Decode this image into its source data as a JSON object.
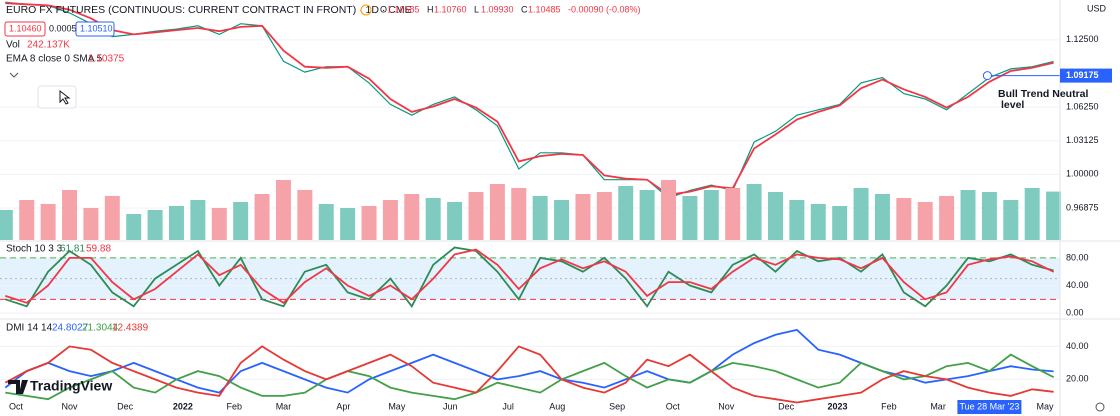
{
  "header": {
    "title": "EURO FX FUTURES (CONTINUOUS: CURRENT CONTRACT IN FRONT) · 1D · CME",
    "quote": [
      {
        "label": "O",
        "value": "1.10585"
      },
      {
        "label": "H",
        "value": "1.10760"
      },
      {
        "label": "L",
        "value": "1.09930"
      },
      {
        "label": "C",
        "value": "1.10485"
      }
    ],
    "change": "-0.00090 (-0.08%)",
    "sell": "1.10460",
    "spread": "0.00050",
    "buy": "1.10510"
  },
  "branding": "TradingView",
  "chart_data": [
    {
      "type": "line",
      "currency": "USD",
      "categories": [
        null,
        null,
        null,
        null,
        null,
        null,
        null,
        null,
        null,
        null,
        null,
        null,
        null,
        null,
        null,
        null,
        null,
        null,
        null,
        null,
        null,
        null,
        null,
        null,
        null,
        null,
        null,
        null,
        null,
        null,
        null,
        null,
        null,
        null,
        null,
        null,
        null,
        null,
        null,
        null,
        null,
        null,
        null,
        null,
        null,
        null,
        null,
        null,
        null,
        null
      ],
      "xlim": [
        -0.25,
        49.3
      ],
      "xticks": [
        {
          "value": 0.5,
          "label": "Oct"
        },
        {
          "value": 3,
          "label": "Nov"
        },
        {
          "value": 5.6,
          "label": "Dec"
        },
        {
          "value": 8.3,
          "label": "2022"
        },
        {
          "value": 10.7,
          "label": "Feb"
        },
        {
          "value": 13,
          "label": "Mar"
        },
        {
          "value": 15.8,
          "label": "Apr"
        },
        {
          "value": 18.3,
          "label": "May"
        },
        {
          "value": 20.8,
          "label": "Jun"
        },
        {
          "value": 23.5,
          "label": "Jul"
        },
        {
          "value": 25.8,
          "label": "Aug"
        },
        {
          "value": 28.6,
          "label": "Sep"
        },
        {
          "value": 31.2,
          "label": "Oct"
        },
        {
          "value": 33.7,
          "label": "Nov"
        },
        {
          "value": 36.5,
          "label": "Dec"
        },
        {
          "value": 38.9,
          "label": "2023"
        },
        {
          "value": 41.3,
          "label": "Feb"
        },
        {
          "value": 43.6,
          "label": "Mar"
        },
        {
          "value": 48.6,
          "label": "May"
        }
      ],
      "crosshair": {
        "value": 46,
        "label": "Tue 28 Mar '23"
      },
      "ylim": [
        0.939,
        1.162
      ],
      "yticks": [
        {
          "value": 1.125,
          "label": "1.12500"
        },
        {
          "value": 1.0625,
          "label": "1.06250"
        },
        {
          "value": 1.03125,
          "label": "1.03125"
        },
        {
          "value": 1,
          "label": "1.00000"
        },
        {
          "value": 0.96875,
          "label": "0.96875"
        }
      ],
      "grid": true,
      "price_line": {
        "value": 1.09175,
        "label": "1.09175",
        "color": "#2962ff"
      },
      "annotation": [
        "Bull Trend Neutral",
        "level"
      ],
      "volume_ylim": [
        0,
        1200
      ],
      "series": [
        {
          "kind": "close",
          "color": "#089981",
          "values": [
            1.16,
            1.158,
            1.157,
            1.15,
            1.14,
            1.128,
            1.13,
            1.133,
            1.135,
            1.138,
            1.13,
            1.14,
            1.138,
            1.105,
            1.095,
            1.1,
            1.1,
            1.085,
            1.065,
            1.055,
            1.065,
            1.072,
            1.06,
            1.045,
            1.005,
            1.02,
            1.02,
            1.018,
            0.995,
            0.995,
            0.995,
            0.978,
            0.985,
            0.99,
            0.985,
            1.03,
            1.04,
            1.055,
            1.06,
            1.065,
            1.085,
            1.09,
            1.075,
            1.07,
            1.06,
            1.075,
            1.09,
            1.098,
            1.1,
            1.10485
          ]
        },
        {
          "kind": "line",
          "name": "EMA 8 close 0 SMA 5",
          "legend_value": "1.10375",
          "color": "#f23645",
          "values": [
            1.159,
            1.158,
            1.157,
            1.153,
            1.145,
            1.134,
            1.13,
            1.132,
            1.134,
            1.136,
            1.133,
            1.137,
            1.138,
            1.115,
            1.1,
            1.099,
            1.1,
            1.089,
            1.07,
            1.058,
            1.063,
            1.07,
            1.062,
            1.049,
            1.012,
            1.017,
            1.019,
            1.018,
            0.999,
            0.996,
            0.995,
            0.981,
            0.984,
            0.989,
            0.987,
            1.024,
            1.037,
            1.051,
            1.058,
            1.064,
            1.08,
            1.088,
            1.079,
            1.072,
            1.062,
            1.072,
            1.086,
            1.096,
            1.099,
            1.10375
          ]
        },
        {
          "kind": "volume",
          "name": "Vol",
          "legend_value": "242.137K",
          "up_color": "#7fcbbf",
          "down_color": "#f5a3a8",
          "values": [
            150,
            200,
            180,
            250,
            160,
            220,
            130,
            150,
            170,
            200,
            160,
            190,
            230,
            300,
            250,
            180,
            160,
            170,
            200,
            230,
            210,
            190,
            240,
            280,
            260,
            220,
            200,
            230,
            240,
            270,
            250,
            300,
            220,
            250,
            260,
            280,
            240,
            200,
            180,
            170,
            260,
            230,
            210,
            190,
            220,
            250,
            240,
            200,
            260,
            242.137
          ]
        }
      ]
    },
    {
      "type": "line",
      "title": "Stoch 10 3 3",
      "ylim": [
        -7,
        103
      ],
      "yticks": [
        {
          "value": 80,
          "label": "80.00"
        },
        {
          "value": 40,
          "label": "40.00"
        },
        {
          "value": 0,
          "label": "0.00"
        }
      ],
      "bands": [
        {
          "value": 80,
          "color": "#4caf50"
        },
        {
          "value": 20,
          "color": "#f23645"
        }
      ],
      "band_fill": "#e3f2fd",
      "midline": 50,
      "series": [
        {
          "kind": "line",
          "legend_value": 61.81,
          "color": "#2e8b57",
          "values": [
            20,
            10,
            60,
            90,
            70,
            30,
            10,
            50,
            70,
            90,
            40,
            80,
            20,
            10,
            60,
            70,
            30,
            20,
            50,
            10,
            70,
            95,
            90,
            60,
            20,
            80,
            75,
            60,
            80,
            50,
            10,
            60,
            40,
            30,
            70,
            85,
            60,
            90,
            75,
            80,
            60,
            85,
            30,
            10,
            40,
            80,
            75,
            85,
            70,
            61.81
          ]
        },
        {
          "kind": "line",
          "legend_value": 59.88,
          "color": "#f23645",
          "values": [
            25,
            15,
            40,
            80,
            80,
            45,
            20,
            35,
            60,
            85,
            55,
            70,
            35,
            15,
            45,
            65,
            40,
            25,
            40,
            20,
            50,
            85,
            92,
            70,
            35,
            65,
            78,
            65,
            75,
            60,
            25,
            45,
            45,
            35,
            60,
            80,
            70,
            85,
            80,
            78,
            65,
            80,
            45,
            20,
            30,
            70,
            78,
            82,
            75,
            59.88
          ]
        }
      ]
    },
    {
      "type": "line",
      "title": "DMI 14 14",
      "ylim": [
        -1,
        56
      ],
      "yticks": [
        {
          "value": 40,
          "label": "40.00"
        },
        {
          "value": 20,
          "label": "20.00"
        }
      ],
      "series": [
        {
          "kind": "line",
          "legend_value": 24.8027,
          "color": "#2962ff",
          "values": [
            15,
            25,
            30,
            25,
            22,
            25,
            30,
            25,
            20,
            15,
            12,
            25,
            30,
            25,
            20,
            15,
            12,
            20,
            25,
            30,
            35,
            30,
            25,
            20,
            22,
            25,
            20,
            18,
            15,
            20,
            25,
            20,
            18,
            25,
            35,
            42,
            47,
            50,
            38,
            35,
            30,
            25,
            22,
            18,
            20,
            22,
            25,
            28,
            26,
            24.8027
          ]
        },
        {
          "kind": "line",
          "legend_value": 21.3044,
          "color": "#43a047",
          "values": [
            12,
            10,
            8,
            15,
            20,
            25,
            15,
            12,
            20,
            25,
            22,
            15,
            10,
            10,
            12,
            20,
            25,
            22,
            15,
            12,
            10,
            8,
            12,
            18,
            15,
            12,
            20,
            25,
            30,
            22,
            15,
            20,
            18,
            25,
            30,
            28,
            25,
            20,
            15,
            18,
            30,
            25,
            20,
            22,
            28,
            30,
            25,
            35,
            28,
            21.3044
          ]
        },
        {
          "kind": "line",
          "legend_value": 12.4389,
          "color": "#e53935",
          "values": [
            18,
            25,
            30,
            40,
            38,
            30,
            25,
            20,
            15,
            12,
            10,
            30,
            40,
            32,
            25,
            20,
            25,
            30,
            35,
            28,
            18,
            15,
            12,
            25,
            40,
            35,
            20,
            15,
            12,
            18,
            32,
            28,
            35,
            25,
            15,
            10,
            8,
            6,
            8,
            10,
            12,
            20,
            25,
            22,
            20,
            15,
            12,
            10,
            14,
            12.4389
          ]
        }
      ]
    }
  ]
}
